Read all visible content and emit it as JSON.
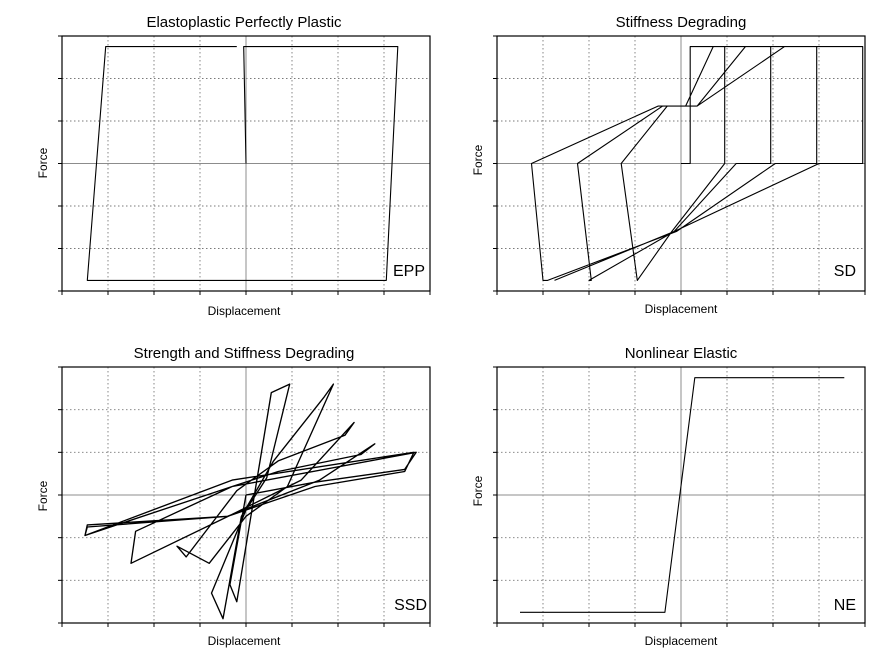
{
  "chart_data": [
    {
      "type": "line",
      "title": "Elastoplastic Perfectly Plastic",
      "xlabel": "Displacement",
      "ylabel": "Force",
      "tag": "EPP",
      "grid": true,
      "xlim": [
        -4,
        4
      ],
      "ylim": [
        -3,
        3
      ],
      "series": [
        {
          "x": [
            0.0,
            -0.05,
            3.3,
            3.05,
            -3.45,
            -3.05,
            -0.2
          ],
          "y": [
            0.0,
            2.75,
            2.75,
            -2.75,
            -2.75,
            2.75,
            2.75
          ]
        }
      ]
    },
    {
      "type": "line",
      "title": "Stiffness Degrading",
      "xlabel": "Displacement",
      "ylabel": "Force",
      "tag": "SD",
      "grid": true,
      "xlim": [
        -4,
        4
      ],
      "ylim": [
        -3,
        3
      ],
      "series": [
        {
          "x": [
            0.0,
            0.2,
            0.2,
            0.95,
            0.95,
            -0.2,
            -0.95,
            -0.95,
            -1.3,
            -0.3,
            0.1,
            0.7,
            0.75,
            1.95,
            1.95,
            1.2,
            -0.15,
            -2.0,
            -1.95,
            -2.25,
            -0.4,
            0.35,
            1.4,
            1.5,
            2.95,
            2.95,
            2.05,
            -0.1,
            -2.9,
            -3.0,
            -3.25,
            -0.5,
            0.35,
            2.25,
            2.45,
            3.95,
            3.95,
            3.0,
            -0.15,
            -2.75
          ],
          "y": [
            0.0,
            0.0,
            2.75,
            2.75,
            0.0,
            -1.6,
            -2.75,
            -2.75,
            0.0,
            1.35,
            1.35,
            2.75,
            2.75,
            2.75,
            0.0,
            0.0,
            -1.6,
            -2.75,
            -2.75,
            0.0,
            1.35,
            1.35,
            2.75,
            2.75,
            2.75,
            0.0,
            0.0,
            -1.6,
            -2.75,
            -2.75,
            0.0,
            1.35,
            1.35,
            2.75,
            2.75,
            2.75,
            0.0,
            0.0,
            -1.6,
            -2.75
          ]
        }
      ]
    },
    {
      "type": "line",
      "title": "Strength and Stiffness Degrading",
      "xlabel": "Displacement",
      "ylabel": "Force",
      "tag": "SSD",
      "grid": true,
      "xlim": [
        -4,
        4
      ],
      "ylim": [
        -3,
        3
      ],
      "series": [
        {
          "x": [
            0.0,
            -0.35,
            -0.2,
            0.55,
            0.95,
            0.45,
            0.0,
            -0.75,
            -0.5,
            -0.1,
            0.6,
            1.7,
            1.9,
            0.9,
            0.0,
            -0.8,
            -1.5,
            -1.3,
            -0.2,
            0.7,
            2.15,
            2.35,
            1.2,
            -0.2,
            -2.5,
            -2.4,
            -0.3,
            0.7,
            2.5,
            2.8,
            1.6,
            -0.4,
            -3.45,
            -3.5,
            -0.3,
            3.65,
            3.45,
            1.5,
            -0.4,
            -3.45,
            -3.5,
            -0.3,
            3.7,
            3.45,
            1.5,
            0.0
          ],
          "y": [
            0.0,
            -2.1,
            -2.5,
            2.4,
            2.6,
            0.4,
            -0.35,
            -2.3,
            -2.9,
            -0.5,
            0.8,
            2.3,
            2.6,
            0.2,
            -0.5,
            -1.6,
            -1.2,
            -1.45,
            0.1,
            0.8,
            1.4,
            1.7,
            0.35,
            -0.4,
            -1.6,
            -0.85,
            0.2,
            0.55,
            0.95,
            1.2,
            0.35,
            -0.5,
            -0.75,
            -0.95,
            0.35,
            1.0,
            0.55,
            0.2,
            -0.5,
            -0.7,
            -0.95,
            0.2,
            1.0,
            0.6,
            0.3,
            0.0
          ]
        }
      ]
    },
    {
      "type": "line",
      "title": "Nonlinear Elastic",
      "xlabel": "Displacement",
      "ylabel": "Force",
      "tag": "NE",
      "grid": true,
      "xlim": [
        -4,
        4
      ],
      "ylim": [
        -3,
        3
      ],
      "series": [
        {
          "x": [
            -3.5,
            -0.35,
            0.3,
            3.55
          ],
          "y": [
            -2.75,
            -2.75,
            2.75,
            2.75
          ]
        }
      ]
    }
  ]
}
